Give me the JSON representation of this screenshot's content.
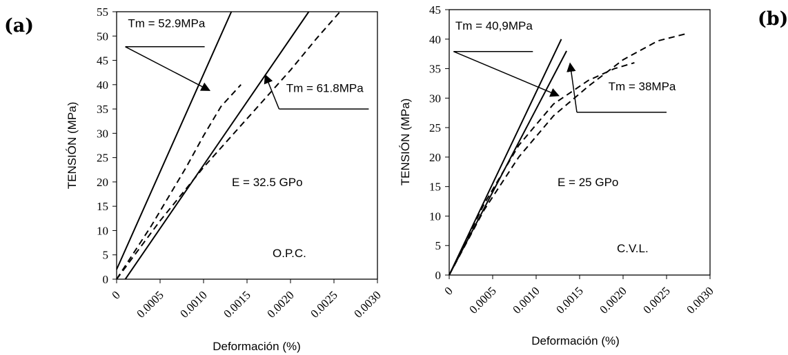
{
  "chart_data": [
    {
      "type": "line",
      "panel": "(a)",
      "xlabel": "Deformación (%)",
      "ylabel": "TENSIÓN (MPa)",
      "xlim": [
        0,
        0.003
      ],
      "ylim": [
        0,
        55
      ],
      "x_tick_labels": [
        "0",
        "0.0005",
        "0.0010",
        "0.0015",
        "0.0020",
        "0.0025",
        "0.0030"
      ],
      "y_tick_labels": [
        "0",
        "5",
        "10",
        "15",
        "20",
        "25",
        "30",
        "35",
        "40",
        "45",
        "50",
        "55"
      ],
      "series": [
        {
          "style": "solid",
          "x": [
            0,
            0.00132
          ],
          "y": [
            2,
            55
          ]
        },
        {
          "style": "solid",
          "x": [
            0.0001,
            0.00221
          ],
          "y": [
            0,
            55
          ]
        },
        {
          "style": "dashed",
          "x": [
            0,
            0.0002,
            0.0004,
            0.0006,
            0.0008,
            0.001,
            0.0012,
            0.00143
          ],
          "y": [
            0,
            5.5,
            11,
            17,
            23,
            29.5,
            35.5,
            40
          ]
        },
        {
          "style": "dashed",
          "x": [
            0,
            0.0005,
            0.001,
            0.0015,
            0.002,
            0.0023,
            0.00257
          ],
          "y": [
            0,
            12,
            23,
            33,
            43,
            49.5,
            55
          ]
        }
      ],
      "annotations": [
        {
          "text": "Tm = 52.9MPa",
          "x": 0.00013,
          "y": 51.8,
          "arrow_from": [
            0.0001,
            47.8
          ],
          "arrow_to": [
            0.00107,
            38.8
          ]
        },
        {
          "text": "Tm = 61.8MPa",
          "x": 0.00195,
          "y": 38.5,
          "arrow_from": [
            0.0029,
            35
          ],
          "arrow_to": [
            0.00171,
            42
          ]
        }
      ],
      "labels": [
        "E = 32.5 GPo",
        "O.P.C."
      ]
    },
    {
      "type": "line",
      "panel": "(b)",
      "xlabel": "Deformación (%)",
      "ylabel": "TENSIÓN (MPa)",
      "xlim": [
        0,
        0.003
      ],
      "ylim": [
        0,
        45
      ],
      "x_tick_labels": [
        "0",
        "0.0005",
        "0.0010",
        "0.0015",
        "0.0020",
        "0.0025",
        "0.0030"
      ],
      "y_tick_labels": [
        "0",
        "5",
        "10",
        "15",
        "20",
        "25",
        "30",
        "35",
        "40",
        "45"
      ],
      "series": [
        {
          "style": "solid",
          "x": [
            0,
            0.00129
          ],
          "y": [
            0,
            40
          ]
        },
        {
          "style": "solid",
          "x": [
            0,
            0.00135
          ],
          "y": [
            0,
            38
          ]
        },
        {
          "style": "dashed",
          "x": [
            0,
            0.0004,
            0.0008,
            0.0012,
            0.0016,
            0.0019,
            0.00213
          ],
          "y": [
            0,
            12,
            22,
            29,
            33,
            35,
            36
          ]
        },
        {
          "style": "dashed",
          "x": [
            0,
            0.0004,
            0.0008,
            0.0012,
            0.0016,
            0.002,
            0.0024,
            0.00272
          ],
          "y": [
            0,
            11,
            20,
            27,
            32,
            36.5,
            39.7,
            40.9
          ]
        }
      ],
      "annotations": [
        {
          "text": "Tm = 40,9MPa",
          "x": 7e-05,
          "y": 41.6,
          "arrow_from": [
            5e-05,
            37.9
          ],
          "arrow_to": [
            0.00126,
            30.4
          ]
        },
        {
          "text": "Tm = 38MPa",
          "x": 0.00183,
          "y": 31.3,
          "arrow_from": [
            0.0025,
            27.6
          ],
          "arrow_to": [
            0.00139,
            35.9
          ]
        }
      ],
      "labels": [
        "E = 25 GPo",
        "C.V.L."
      ]
    }
  ]
}
